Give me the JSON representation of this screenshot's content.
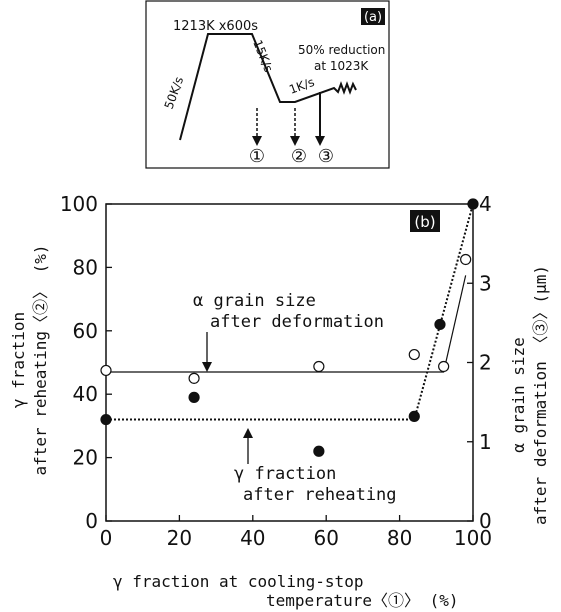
{
  "panel_a": {
    "hold_label": "1213K x600s",
    "heat_rate_label": "50K/s",
    "cool_rate_label": "15K/s",
    "reheat_rate_label": "1K/s",
    "deform_label_1": "50% reduction",
    "deform_label_2": "at 1023K",
    "tag": "(a)",
    "markers": [
      "①",
      "②",
      "③"
    ]
  },
  "chart_data": {
    "type": "scatter",
    "tag": "(b)",
    "xlabel_line1": "γ fraction at cooling-stop",
    "xlabel_line2": "temperature〈①〉 (%)",
    "ylabel_left_line1": "γ fraction",
    "ylabel_left_line2": "after reheating〈②〉 (%)",
    "ylabel_right_line1": "α grain size",
    "ylabel_right_line2": "after deformation 〈③〉(μm)",
    "xlim": [
      0,
      100
    ],
    "ylim_left": [
      0,
      100
    ],
    "ylim_right": [
      0,
      4
    ],
    "x_ticks": [
      "0",
      "20",
      "40",
      "60",
      "80",
      "100"
    ],
    "y_left_ticks": [
      "0",
      "20",
      "40",
      "60",
      "80",
      "100"
    ],
    "y_right_ticks": [
      "0",
      "1",
      "2",
      "3",
      "4"
    ],
    "annotations": {
      "grain_line1": "α grain size",
      "grain_line2": "after deformation",
      "fraction_line1": "γ fraction",
      "fraction_line2": "after reheating"
    },
    "series": [
      {
        "axis": "left",
        "marker": "filled-circle",
        "x": [
          0,
          24,
          58,
          84,
          91,
          100
        ],
        "y": [
          32,
          39,
          22,
          33,
          62,
          100
        ]
      },
      {
        "axis": "right",
        "marker": "open-circle",
        "x": [
          0,
          24,
          58,
          84,
          92,
          98
        ],
        "y": [
          1.9,
          1.8,
          1.95,
          2.1,
          1.95,
          3.3
        ]
      }
    ],
    "trend_lines": [
      {
        "axis": "left",
        "style": "dotted",
        "x": [
          0,
          84,
          100
        ],
        "y": [
          32,
          32,
          100
        ]
      },
      {
        "axis": "right",
        "style": "solid",
        "x": [
          0,
          92,
          98
        ],
        "y": [
          1.88,
          1.88,
          3.1
        ]
      }
    ]
  }
}
